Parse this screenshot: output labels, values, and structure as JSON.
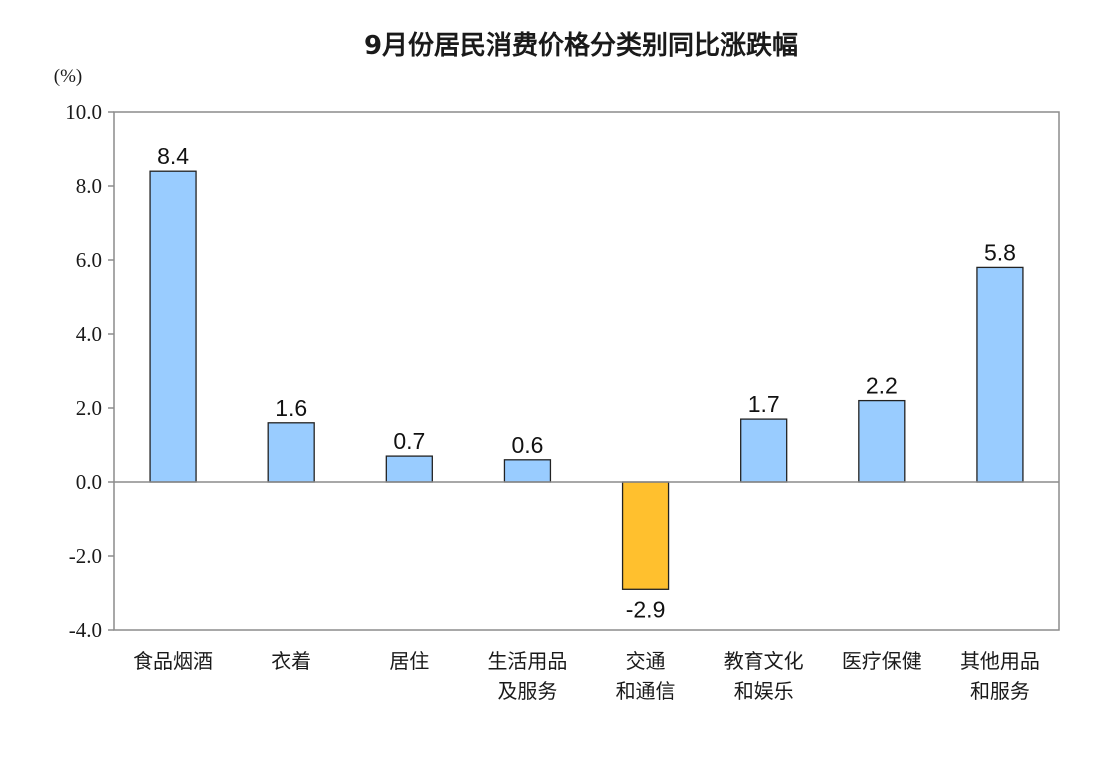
{
  "chart_data": {
    "type": "bar",
    "title": "9月份居民消费价格分类别同比涨跌幅",
    "unit_label": "(%)",
    "ylim": [
      -4.0,
      10.0
    ],
    "yticks": [
      "10.0",
      "8.0",
      "6.0",
      "4.0",
      "2.0",
      "0.0",
      "-2.0",
      "-4.0"
    ],
    "ytick_values": [
      10,
      8,
      6,
      4,
      2,
      0,
      -2,
      -4
    ],
    "categories": [
      [
        "食品烟酒"
      ],
      [
        "衣着"
      ],
      [
        "居住"
      ],
      [
        "生活用品",
        "及服务"
      ],
      [
        "交通",
        "和通信"
      ],
      [
        "教育文化",
        "和娱乐"
      ],
      [
        "医疗保健"
      ],
      [
        "其他用品",
        "和服务"
      ]
    ],
    "values": [
      8.4,
      1.6,
      0.7,
      0.6,
      -2.9,
      1.7,
      2.2,
      5.8
    ],
    "value_labels": [
      "8.4",
      "1.6",
      "0.7",
      "0.6",
      "-2.9",
      "1.7",
      "2.2",
      "5.8"
    ],
    "grid": false,
    "legend": "none",
    "colors": {
      "positive": "#99ccff",
      "negative": "#ffc02e",
      "bar_stroke": "#222222",
      "frame": "#8c8c8c",
      "zero_line": "#8c8c8c"
    }
  }
}
